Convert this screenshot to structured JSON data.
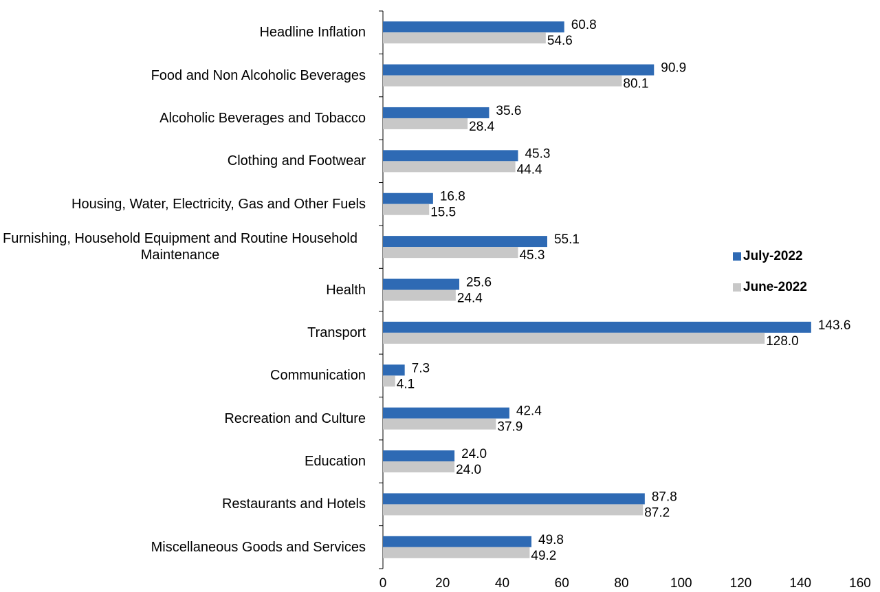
{
  "chart_data": {
    "type": "barh",
    "categories": [
      "Headline Inflation",
      "Food and Non Alcoholic Beverages",
      "Alcoholic Beverages and Tobacco",
      "Clothing and Footwear",
      "Housing, Water, Electricity, Gas and Other Fuels",
      "Furnishing, Household Equipment and Routine Household Maintenance",
      "Health",
      "Transport",
      "Communication",
      "Recreation and Culture",
      "Education",
      "Restaurants and Hotels",
      "Miscellaneous Goods and Services"
    ],
    "series": [
      {
        "name": "July-2022",
        "color": "#2e6ab4",
        "values": [
          60.8,
          90.9,
          35.6,
          45.3,
          16.8,
          55.1,
          25.6,
          143.6,
          7.3,
          42.4,
          24.0,
          87.8,
          49.8
        ],
        "value_labels": [
          "60.8",
          "90.9",
          "35.6",
          "45.3",
          "16.8",
          "55.1",
          "25.6",
          "143.6",
          "7.3",
          "42.4",
          "24.0",
          "87.8",
          "49.8"
        ]
      },
      {
        "name": "June-2022",
        "color": "#c8c8c8",
        "values": [
          54.6,
          80.1,
          28.4,
          44.4,
          15.5,
          45.3,
          24.4,
          128.0,
          4.1,
          37.9,
          24.0,
          87.2,
          49.2
        ],
        "value_labels": [
          "54.6",
          "80.1",
          "28.4",
          "44.4",
          "15.5",
          "45.3",
          "24.4",
          "128.0",
          "4.1",
          "37.9",
          "24.0",
          "87.2",
          "49.2"
        ]
      }
    ],
    "xlim": [
      0,
      160
    ],
    "xticks": [
      0,
      20,
      40,
      60,
      80,
      100,
      120,
      140,
      160
    ],
    "legend": "right",
    "grid": false
  }
}
